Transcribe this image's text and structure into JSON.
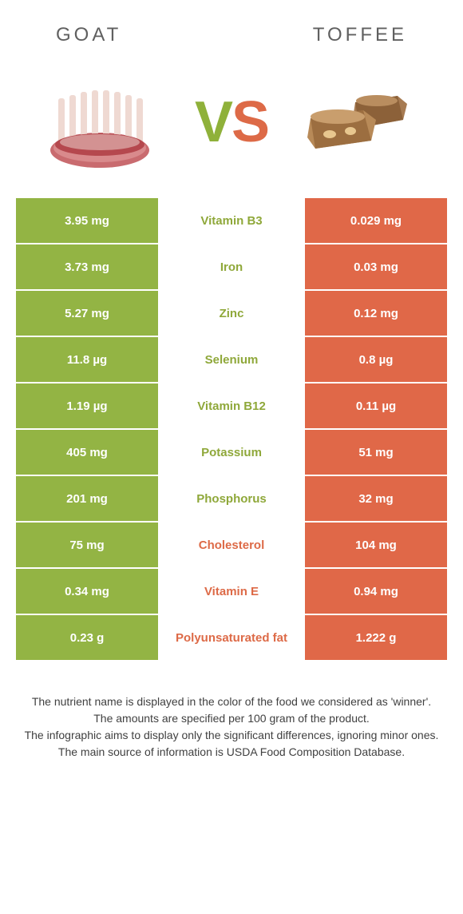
{
  "header": {
    "left_title": "GOAT",
    "right_title": "Toffee"
  },
  "vs": {
    "v": "V",
    "s": "S"
  },
  "colors": {
    "left": "#93b444",
    "right": "#e06848",
    "left_text": "#8fa83a",
    "right_text": "#dd6a47",
    "row_left_bg": "#93b444",
    "row_right_bg": "#e06848"
  },
  "rows": [
    {
      "left": "3.95 mg",
      "mid": "Vitamin B3",
      "right": "0.029 mg",
      "winner": "left"
    },
    {
      "left": "3.73 mg",
      "mid": "Iron",
      "right": "0.03 mg",
      "winner": "left"
    },
    {
      "left": "5.27 mg",
      "mid": "Zinc",
      "right": "0.12 mg",
      "winner": "left"
    },
    {
      "left": "11.8 µg",
      "mid": "Selenium",
      "right": "0.8 µg",
      "winner": "left"
    },
    {
      "left": "1.19 µg",
      "mid": "Vitamin B12",
      "right": "0.11 µg",
      "winner": "left"
    },
    {
      "left": "405 mg",
      "mid": "Potassium",
      "right": "51 mg",
      "winner": "left"
    },
    {
      "left": "201 mg",
      "mid": "Phosphorus",
      "right": "32 mg",
      "winner": "left"
    },
    {
      "left": "75 mg",
      "mid": "Cholesterol",
      "right": "104 mg",
      "winner": "right"
    },
    {
      "left": "0.34 mg",
      "mid": "Vitamin E",
      "right": "0.94 mg",
      "winner": "right"
    },
    {
      "left": "0.23 g",
      "mid": "Polyunsaturated fat",
      "right": "1.222 g",
      "winner": "right"
    }
  ],
  "footer": {
    "line1": "The nutrient name is displayed in the color of the food we considered as 'winner'.",
    "line2": "The amounts are specified per 100 gram of the product.",
    "line3": "The infographic aims to display only the significant differences, ignoring minor ones.",
    "line4": "The main source of information is USDA Food Composition Database."
  }
}
